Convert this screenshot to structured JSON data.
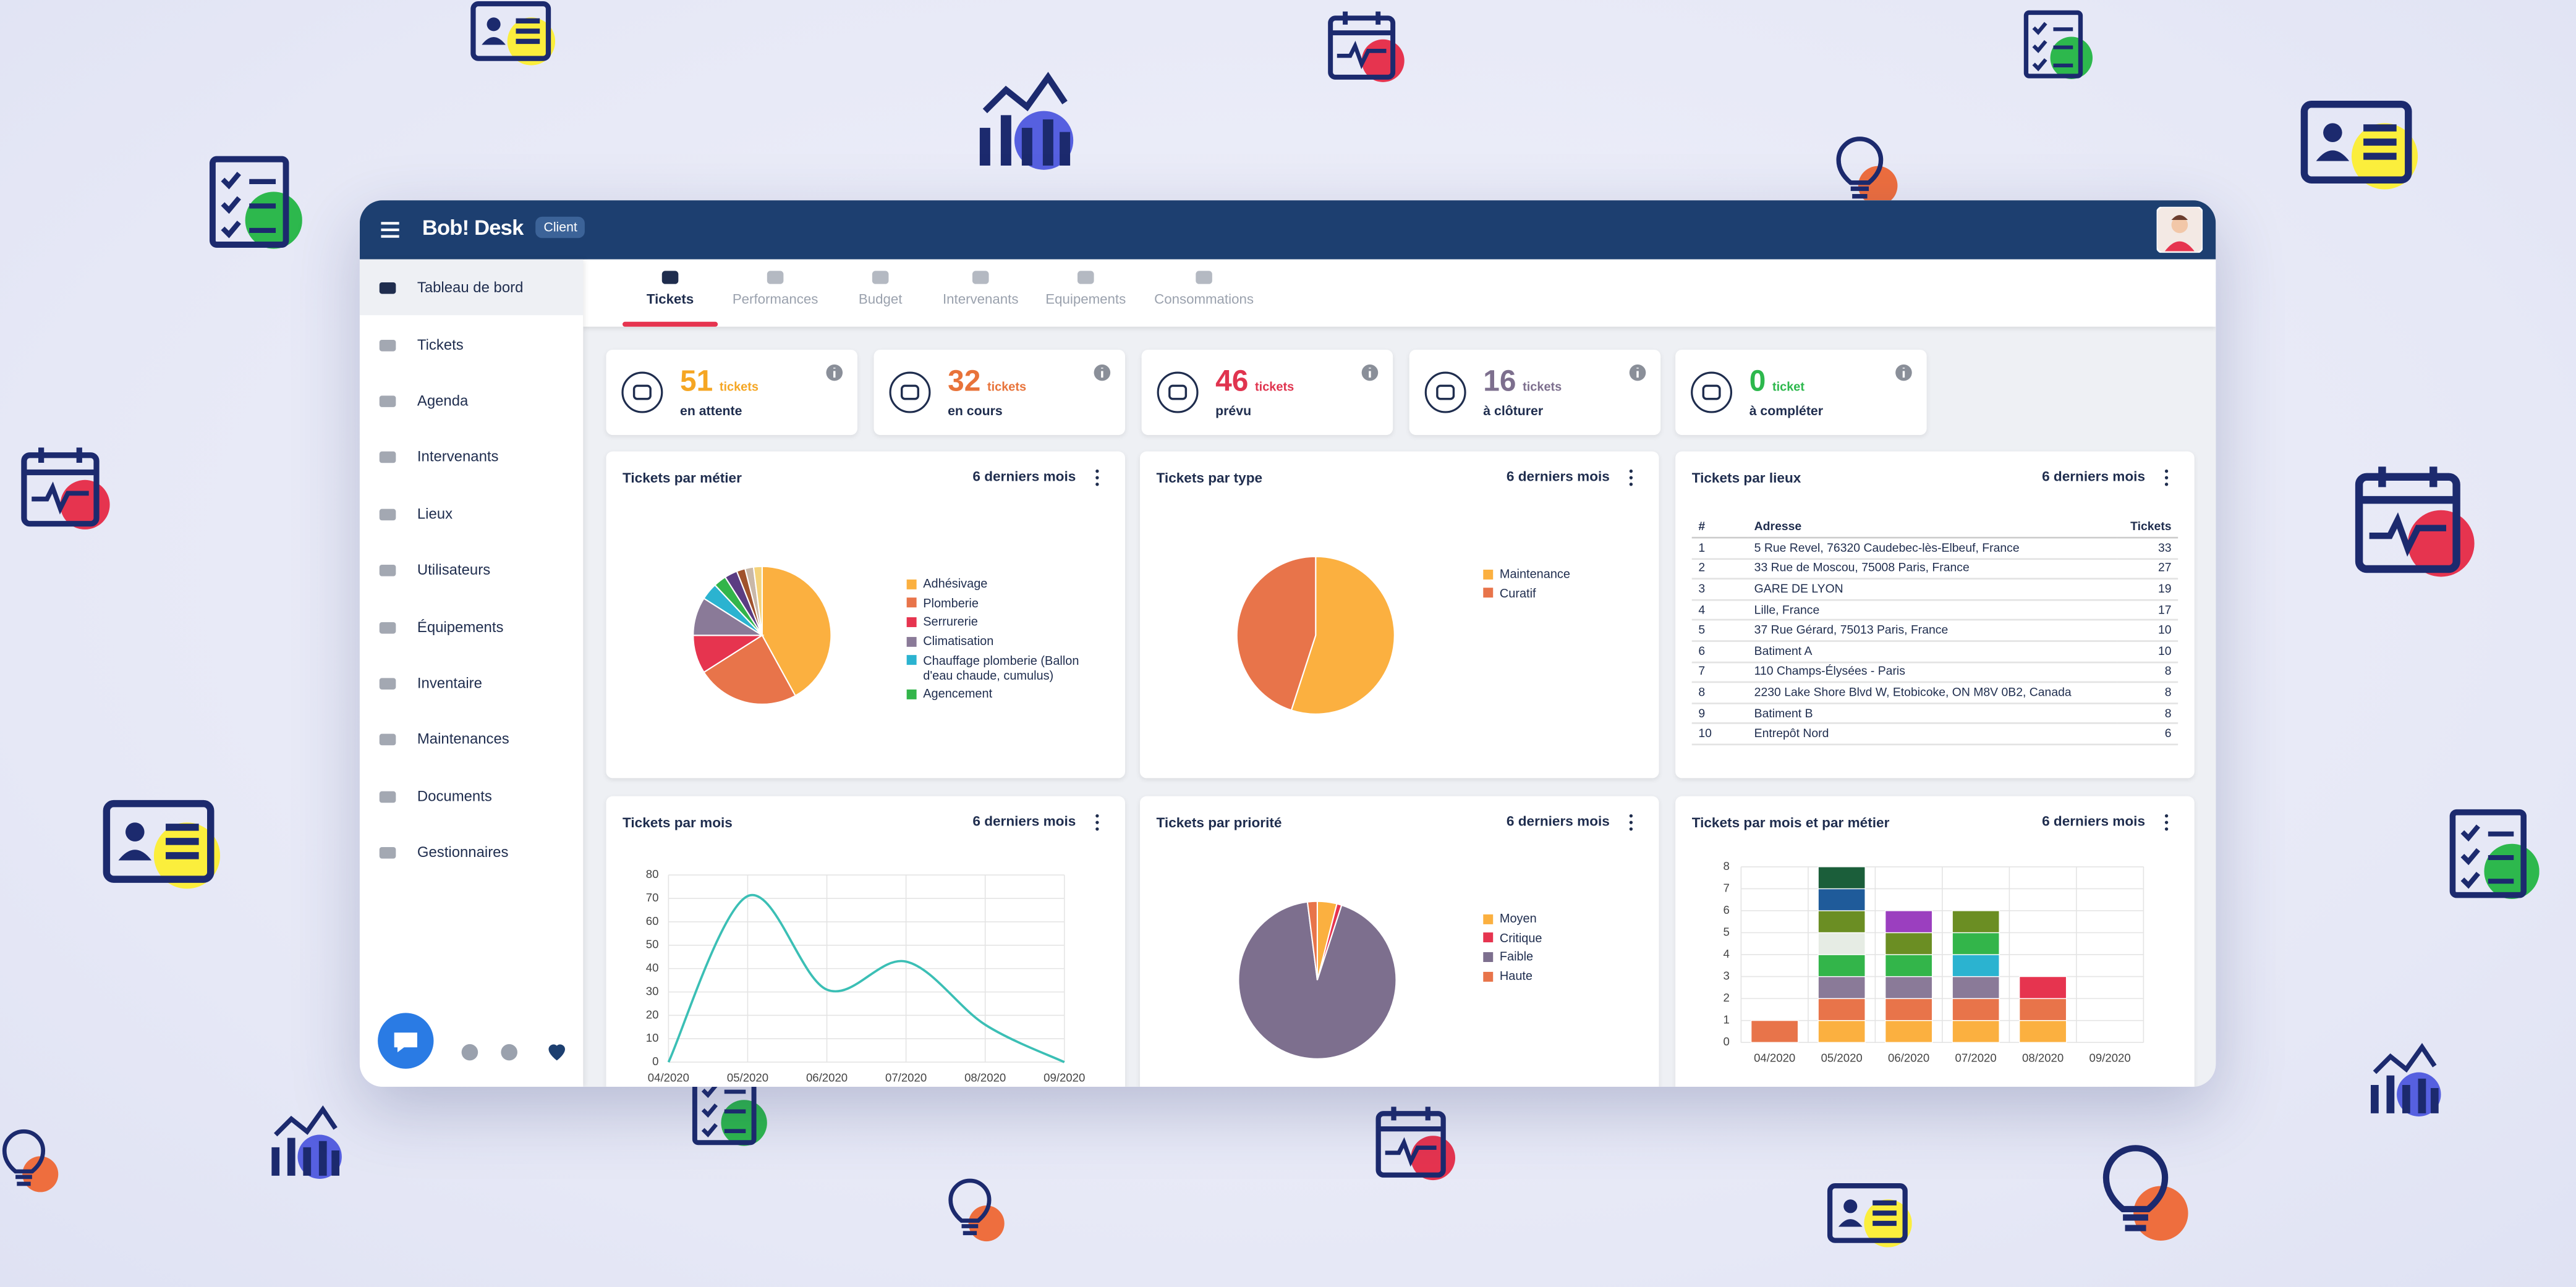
{
  "header": {
    "logo": "Bob! Desk",
    "badge": "Client"
  },
  "sidebar": {
    "items": [
      "Tableau de bord",
      "Tickets",
      "Agenda",
      "Intervenants",
      "Lieux",
      "Utilisateurs",
      "Équipements",
      "Inventaire",
      "Maintenances",
      "Documents",
      "Gestionnaires"
    ],
    "active": 0
  },
  "tabs": {
    "items": [
      "Tickets",
      "Performances",
      "Budget",
      "Intervenants",
      "Equipements",
      "Consommations"
    ],
    "active": 0
  },
  "kpis": [
    {
      "value": 51,
      "unit": "tickets",
      "label": "en attente",
      "color": "#f5a623"
    },
    {
      "value": 32,
      "unit": "tickets",
      "label": "en cours",
      "color": "#e8733a"
    },
    {
      "value": 46,
      "unit": "tickets",
      "label": "prévu",
      "color": "#e0344f"
    },
    {
      "value": 16,
      "unit": "tickets",
      "label": "à clôturer",
      "color": "#7d6f8e"
    },
    {
      "value": 0,
      "unit": "ticket",
      "label": "à compléter",
      "color": "#2db84d"
    }
  ],
  "widgets": [
    {
      "title": "Tickets par métier",
      "period": "6 derniers mois",
      "chart_data": {
        "type": "pie",
        "categories": [
          "Adhésivage",
          "Plomberie",
          "Serrurerie",
          "Climatisation",
          "Chauffage plomberie (Ballon d'eau chaude, cumulus)",
          "Agencement",
          null,
          null,
          null,
          null
        ],
        "values": [
          42,
          24,
          9,
          9,
          4,
          3,
          3,
          2,
          2,
          2
        ],
        "colors": [
          "#fbb040",
          "#e8744a",
          "#e6344f",
          "#8a7a98",
          "#2bb3d0",
          "#33b54a",
          "#5b3c82",
          "#a0522d",
          "#c9b8a8",
          "#f4d27a"
        ]
      }
    },
    {
      "title": "Tickets par type",
      "period": "6 derniers mois",
      "chart_data": {
        "type": "pie",
        "categories": [
          "Maintenance",
          "Curatif"
        ],
        "values": [
          55,
          45
        ],
        "colors": [
          "#fbb040",
          "#e8744a"
        ]
      }
    },
    {
      "title": "Tickets par lieux",
      "period": "6 derniers mois",
      "table": {
        "columns": [
          "#",
          "Adresse",
          "Tickets"
        ],
        "rows": [
          [
            1,
            "5 Rue Revel, 76320 Caudebec-lès-Elbeuf, France",
            33
          ],
          [
            2,
            "33 Rue de Moscou, 75008 Paris, France",
            27
          ],
          [
            3,
            "GARE DE LYON",
            19
          ],
          [
            4,
            "Lille, France",
            17
          ],
          [
            5,
            "37 Rue Gérard, 75013 Paris, France",
            10
          ],
          [
            6,
            "Batiment A",
            10
          ],
          [
            7,
            "110 Champs-Élysées - Paris",
            8
          ],
          [
            8,
            "2230 Lake Shore Blvd W, Etobicoke, ON M8V 0B2, Canada",
            8
          ],
          [
            9,
            "Batiment B",
            8
          ],
          [
            10,
            "Entrepôt Nord",
            6
          ]
        ]
      }
    },
    {
      "title": "Tickets par mois",
      "period": "6 derniers mois",
      "chart_data": {
        "type": "line",
        "x": [
          "04/2020",
          "05/2020",
          "06/2020",
          "07/2020",
          "08/2020",
          "09/2020"
        ],
        "series": [
          {
            "name": null,
            "color": "#3bbfb5",
            "values": [
              0,
              71,
              31,
              43,
              16,
              0
            ]
          }
        ],
        "ylim": [
          0,
          80
        ],
        "yticks": [
          0,
          10,
          20,
          30,
          40,
          50,
          60,
          70,
          80
        ],
        "grid": true
      }
    },
    {
      "title": "Tickets par priorité",
      "period": "6 derniers mois",
      "chart_data": {
        "type": "pie",
        "categories": [
          "Moyen",
          "Critique",
          "Faible",
          "Haute"
        ],
        "values": [
          4,
          1,
          93,
          2
        ],
        "colors": [
          "#fbb040",
          "#e6344f",
          "#7d6f8e",
          "#e8744a"
        ]
      }
    },
    {
      "title": "Tickets par mois et par métier",
      "period": "6 derniers mois",
      "chart_data": {
        "type": "bar",
        "stacked": true,
        "categories": [
          "04/2020",
          "05/2020",
          "06/2020",
          "07/2020",
          "08/2020",
          "09/2020"
        ],
        "series": [
          {
            "name": null,
            "color": "#fbb040",
            "values": [
              0,
              1,
              1,
              1,
              1,
              0
            ]
          },
          {
            "name": null,
            "color": "#e8744a",
            "values": [
              1,
              1,
              1,
              1,
              1,
              0
            ]
          },
          {
            "name": null,
            "color": "#e6344f",
            "values": [
              0,
              0,
              0,
              0,
              1,
              0
            ]
          },
          {
            "name": null,
            "color": "#8a7a98",
            "values": [
              0,
              1,
              1,
              1,
              0,
              0
            ]
          },
          {
            "name": null,
            "color": "#2bb3d0",
            "values": [
              0,
              0,
              0,
              1,
              0,
              0
            ]
          },
          {
            "name": null,
            "color": "#33b54a",
            "values": [
              0,
              1,
              1,
              1,
              0,
              0
            ]
          },
          {
            "name": null,
            "color": "#e6ece4",
            "values": [
              0,
              1,
              0,
              0,
              0,
              0
            ]
          },
          {
            "name": null,
            "color": "#6b8e23",
            "values": [
              0,
              1,
              1,
              1,
              0,
              0
            ]
          },
          {
            "name": null,
            "color": "#9b3fbf",
            "values": [
              0,
              0,
              1,
              0,
              0,
              0
            ]
          },
          {
            "name": null,
            "color": "#1f5b9a",
            "values": [
              0,
              1,
              0,
              0,
              0,
              0
            ]
          },
          {
            "name": null,
            "color": "#1b5e3a",
            "values": [
              0,
              1,
              0,
              0,
              0,
              0
            ]
          }
        ],
        "ylim": [
          0,
          8
        ],
        "yticks": [
          0,
          1,
          2,
          3,
          4,
          5,
          6,
          7,
          8
        ],
        "grid": true
      }
    }
  ]
}
